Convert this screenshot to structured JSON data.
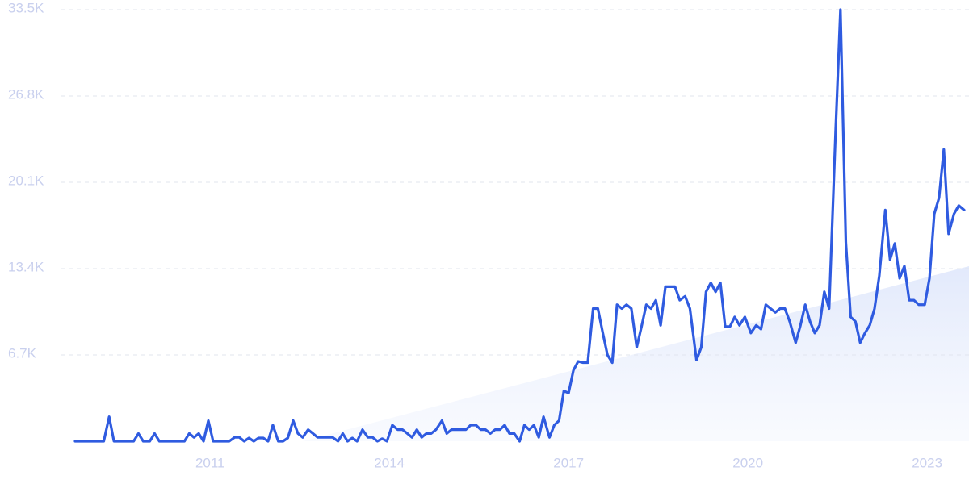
{
  "chart_data": {
    "type": "line",
    "x": [
      2008.74,
      2009.22,
      2009.31,
      2009.39,
      2009.72,
      2009.8,
      2009.88,
      2009.99,
      2010.07,
      2010.15,
      2010.57,
      2010.65,
      2010.73,
      2010.81,
      2010.89,
      2010.97,
      2011.05,
      2011.32,
      2011.41,
      2011.49,
      2011.57,
      2011.65,
      2011.73,
      2011.81,
      2011.89,
      2011.97,
      2012.05,
      2012.14,
      2012.22,
      2012.3,
      2012.39,
      2012.47,
      2012.55,
      2012.64,
      2012.72,
      2012.8,
      2013.05,
      2013.14,
      2013.22,
      2013.3,
      2013.38,
      2013.46,
      2013.55,
      2013.64,
      2013.72,
      2013.8,
      2013.88,
      2013.96,
      2014.05,
      2014.14,
      2014.22,
      2014.3,
      2014.38,
      2014.46,
      2014.54,
      2014.62,
      2014.7,
      2014.78,
      2014.88,
      2014.96,
      2015.04,
      2015.12,
      2015.2,
      2015.28,
      2015.36,
      2015.45,
      2015.53,
      2015.61,
      2015.69,
      2015.77,
      2015.85,
      2015.93,
      2016.01,
      2016.09,
      2016.18,
      2016.26,
      2016.34,
      2016.42,
      2016.5,
      2016.58,
      2016.68,
      2016.76,
      2016.84,
      2016.92,
      2017.0,
      2017.08,
      2017.16,
      2017.24,
      2017.32,
      2017.41,
      2017.49,
      2017.57,
      2017.65,
      2017.73,
      2017.81,
      2017.89,
      2017.97,
      2018.05,
      2018.14,
      2018.22,
      2018.3,
      2018.38,
      2018.46,
      2018.54,
      2018.62,
      2018.7,
      2018.78,
      2018.86,
      2018.95,
      2019.03,
      2019.14,
      2019.22,
      2019.3,
      2019.38,
      2019.46,
      2019.54,
      2019.62,
      2019.7,
      2019.78,
      2019.86,
      2019.95,
      2020.05,
      2020.14,
      2020.22,
      2020.3,
      2020.38,
      2020.46,
      2020.54,
      2020.62,
      2020.7,
      2020.8,
      2020.88,
      2020.96,
      2021.04,
      2021.12,
      2021.2,
      2021.28,
      2021.36,
      2021.47,
      2021.55,
      2021.64,
      2021.72,
      2021.8,
      2021.88,
      2021.96,
      2022.04,
      2022.12,
      2022.2,
      2022.3,
      2022.38,
      2022.46,
      2022.54,
      2022.62,
      2022.7,
      2022.78,
      2022.86,
      2022.96,
      2023.04,
      2023.12,
      2023.2,
      2023.28,
      2023.36,
      2023.45,
      2023.53,
      2023.62
    ],
    "series": [
      {
        "color": "#2f5be0",
        "values": [
          0,
          0,
          1900,
          0,
          0,
          600,
          0,
          0,
          600,
          0,
          0,
          600,
          300,
          600,
          0,
          1600,
          0,
          0,
          300,
          300,
          0,
          250,
          0,
          250,
          250,
          0,
          1250,
          0,
          0,
          250,
          1600,
          600,
          300,
          900,
          600,
          300,
          300,
          0,
          600,
          0,
          250,
          0,
          900,
          300,
          300,
          0,
          200,
          0,
          1250,
          900,
          900,
          600,
          300,
          900,
          300,
          600,
          600,
          900,
          1600,
          600,
          900,
          900,
          900,
          900,
          1250,
          1250,
          900,
          900,
          600,
          900,
          900,
          1250,
          600,
          600,
          0,
          1250,
          900,
          1250,
          300,
          1900,
          300,
          1250,
          1600,
          3900,
          3750,
          5500,
          6200,
          6100,
          6100,
          10300,
          10300,
          8450,
          6700,
          6100,
          10600,
          10300,
          10600,
          10300,
          7300,
          8900,
          10600,
          10300,
          10950,
          9000,
          12000,
          12000,
          12000,
          10950,
          11250,
          10300,
          6300,
          7300,
          11600,
          12300,
          11600,
          12300,
          8900,
          8900,
          9650,
          9000,
          9650,
          8400,
          9000,
          8700,
          10600,
          10300,
          10000,
          10300,
          10300,
          9300,
          7650,
          9000,
          10600,
          9300,
          8400,
          9000,
          11600,
          10300,
          24200,
          33500,
          15450,
          9650,
          9300,
          7650,
          8400,
          9000,
          10300,
          12850,
          17950,
          14100,
          15350,
          12650,
          13600,
          10950,
          10950,
          10600,
          10600,
          12650,
          17650,
          18900,
          22650,
          16100,
          17650,
          18300,
          17950
        ]
      }
    ],
    "xlim": [
      2008.74,
      2023.62
    ],
    "xticks": [
      2011,
      2014,
      2017,
      2020,
      2023
    ],
    "ylim": [
      0,
      33500
    ],
    "yticks": [
      {
        "value": 6700,
        "label": "6.7K"
      },
      {
        "value": 13400,
        "label": "13.4K"
      },
      {
        "value": 20100,
        "label": "20.1K"
      },
      {
        "value": 26800,
        "label": "26.8K"
      },
      {
        "value": 33500,
        "label": "33.5K"
      }
    ],
    "grid": true
  }
}
